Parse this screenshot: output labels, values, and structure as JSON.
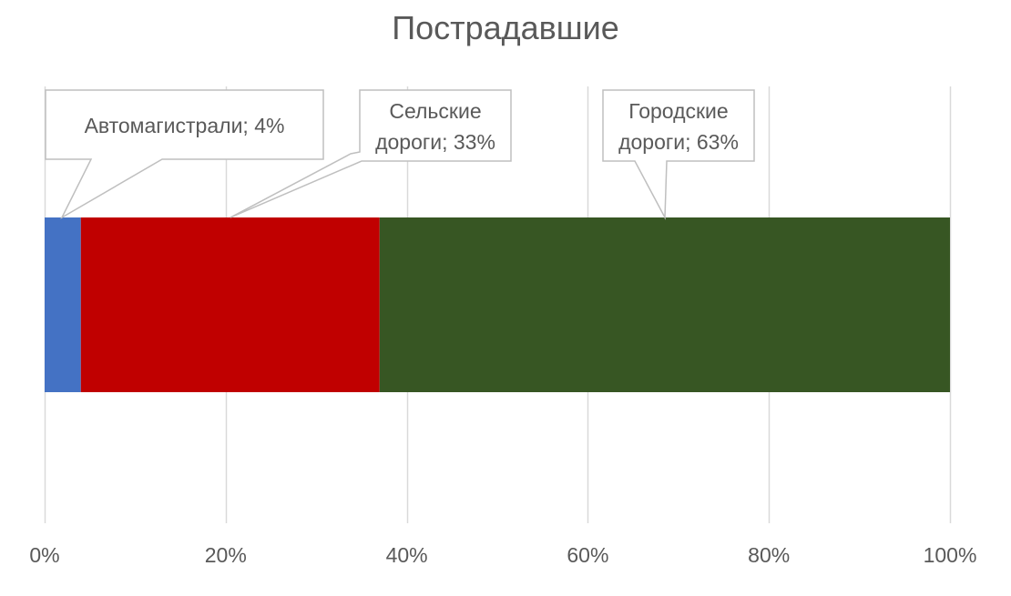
{
  "chart_data": {
    "type": "bar",
    "orientation": "horizontal",
    "stacked": true,
    "percent_stacked": true,
    "title": "Пострадавшие",
    "categories": [
      ""
    ],
    "series": [
      {
        "name": "Автомагистрали",
        "values": [
          4
        ],
        "color": "#4472C4",
        "label": "Автомагистрали; 4%"
      },
      {
        "name": "Сельские дороги",
        "values": [
          33
        ],
        "color": "#C00000",
        "label": "Сельские дороги; 33%"
      },
      {
        "name": "Городские дороги",
        "values": [
          63
        ],
        "color": "#375623",
        "label": "Городские дороги; 63%"
      }
    ],
    "xlim": [
      0,
      100
    ],
    "x_ticks": [
      0,
      20,
      40,
      60,
      80,
      100
    ],
    "x_tick_labels": [
      "0%",
      "20%",
      "40%",
      "60%",
      "80%",
      "100%"
    ],
    "grid": true,
    "legend": "none",
    "data_label_style": "callout"
  }
}
